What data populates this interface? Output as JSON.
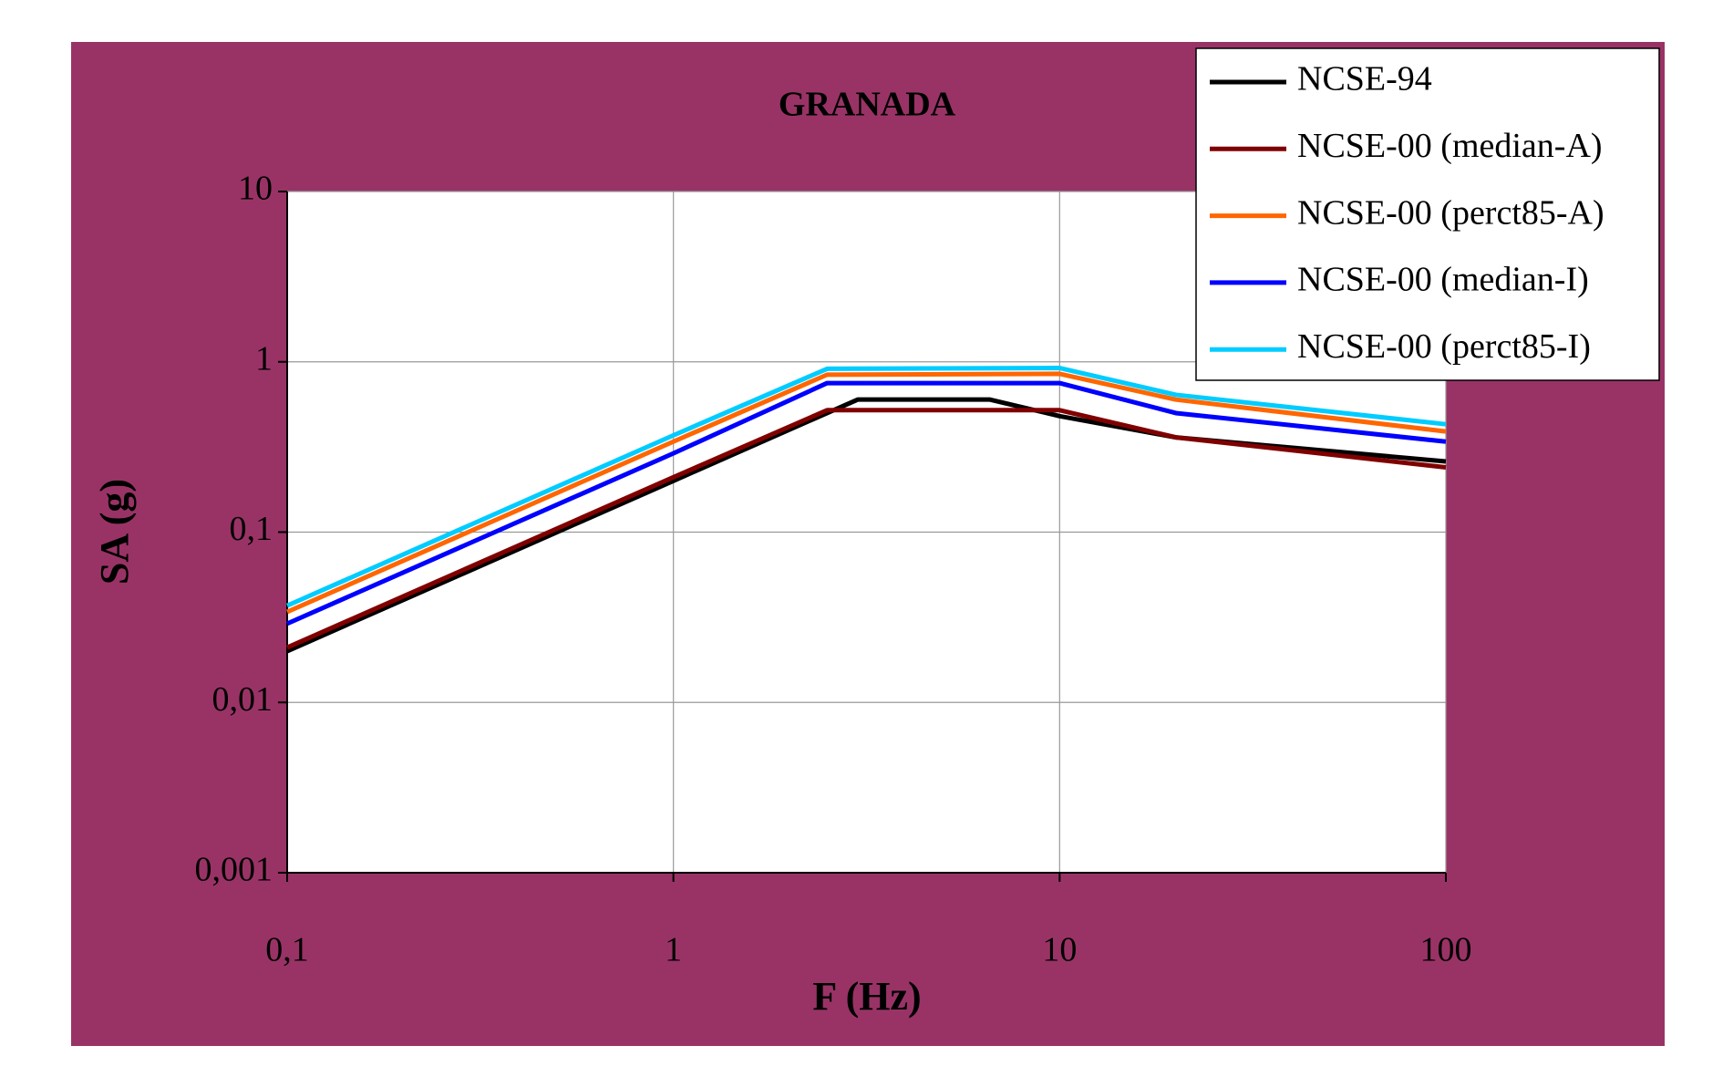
{
  "chart_data": {
    "type": "line",
    "title": "GRANADA",
    "x_label": "F (Hz)",
    "y_label": "SA (g)",
    "xscale": "log",
    "yscale": "log",
    "grid": true,
    "legend": "top-right",
    "background": "#993366",
    "xlim": [
      0.1,
      100
    ],
    "ylim": [
      0.001,
      10
    ],
    "xticks": [
      {
        "value": 0.1,
        "label": "0,1"
      },
      1,
      10,
      100
    ],
    "yticks": [
      {
        "value": 0.001,
        "label": "0,001"
      },
      {
        "value": 0.01,
        "label": "0,01"
      },
      {
        "value": 0.1,
        "label": "0,1"
      },
      1,
      10
    ],
    "series": [
      {
        "name": "NCSE-94",
        "color": "#000000",
        "x": [
          0.1,
          1,
          3,
          6.6,
          10,
          20,
          100
        ],
        "values": [
          0.02,
          0.2,
          0.6,
          0.6,
          0.48,
          0.36,
          0.26
        ]
      },
      {
        "name": "NCSE-00 (median-A)",
        "color": "#800000",
        "x": [
          0.1,
          1,
          2.5,
          10,
          20,
          100
        ],
        "values": [
          0.021,
          0.21,
          0.52,
          0.52,
          0.36,
          0.24
        ]
      },
      {
        "name": "NCSE-00 (perct85-A)",
        "color": "#ff6600",
        "x": [
          0.1,
          1,
          2.5,
          10,
          20,
          100
        ],
        "values": [
          0.034,
          0.34,
          0.84,
          0.85,
          0.6,
          0.39
        ]
      },
      {
        "name": "NCSE-00 (median-I)",
        "color": "#0000ff",
        "x": [
          0.1,
          1,
          2.5,
          10,
          20,
          100
        ],
        "values": [
          0.029,
          0.29,
          0.75,
          0.75,
          0.5,
          0.34
        ]
      },
      {
        "name": "NCSE-00 (perct85-I)",
        "color": "#00ccff",
        "x": [
          0.1,
          1,
          2.5,
          10,
          20,
          100
        ],
        "values": [
          0.037,
          0.37,
          0.91,
          0.92,
          0.64,
          0.43
        ]
      }
    ]
  }
}
